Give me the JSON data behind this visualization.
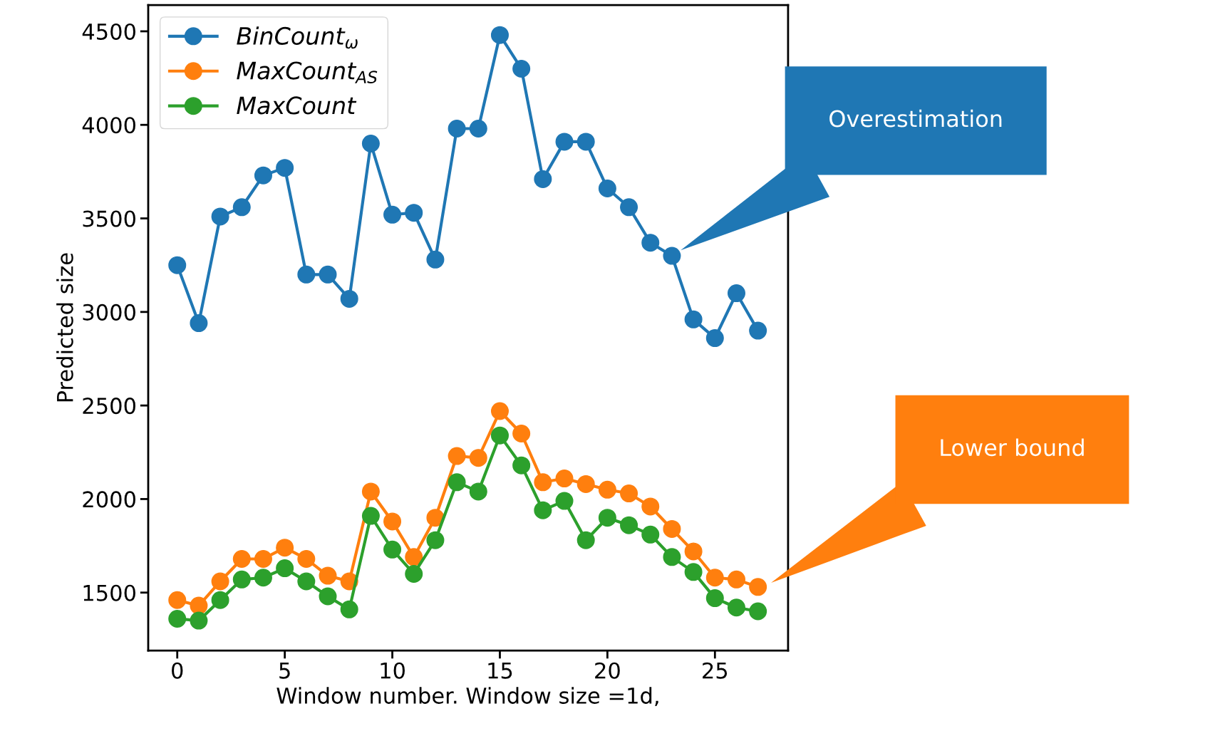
{
  "chart_data": {
    "type": "line",
    "xlabel": "Window number. Window size =1d,",
    "ylabel": "Predicted size",
    "x": [
      0,
      1,
      2,
      3,
      4,
      5,
      6,
      7,
      8,
      9,
      10,
      11,
      12,
      13,
      14,
      15,
      16,
      17,
      18,
      19,
      20,
      21,
      22,
      23,
      24,
      25,
      26,
      27
    ],
    "series": [
      {
        "name": "BinCount$_{ω}$",
        "color": "#1f77b4",
        "values": [
          3250,
          2940,
          3510,
          3560,
          3730,
          3770,
          3200,
          3200,
          3070,
          3900,
          3520,
          3530,
          3280,
          3980,
          3980,
          4480,
          4300,
          3710,
          3910,
          3910,
          3660,
          3560,
          3370,
          3300,
          2960,
          2860,
          3100,
          2900
        ]
      },
      {
        "name": "MaxCount$_{AS}$",
        "color": "#ff7f0e",
        "values": [
          1460,
          1430,
          1560,
          1680,
          1680,
          1740,
          1680,
          1590,
          1560,
          2040,
          1880,
          1690,
          1900,
          2230,
          2220,
          2470,
          2350,
          2090,
          2110,
          2080,
          2050,
          2030,
          1960,
          1840,
          1720,
          1580,
          1570,
          1530
        ]
      },
      {
        "name": "MaxCount",
        "color": "#2ca02c",
        "values": [
          1360,
          1350,
          1460,
          1570,
          1580,
          1630,
          1560,
          1480,
          1410,
          1910,
          1730,
          1600,
          1780,
          2090,
          2040,
          2340,
          2180,
          1940,
          1990,
          1780,
          1900,
          1860,
          1810,
          1690,
          1610,
          1470,
          1420,
          1400
        ]
      }
    ],
    "xlim": [
      -1.35,
      28.4
    ],
    "xticks": [
      0,
      5,
      10,
      15,
      20,
      25
    ],
    "ylim": [
      1190,
      4640
    ],
    "yticks": [
      1500,
      2000,
      2500,
      3000,
      3500,
      4000,
      4500
    ],
    "marker": "circle",
    "line_style": "solid",
    "legend": "top left",
    "grid": false,
    "annotations": [
      "Overestimation",
      "Lower bound"
    ]
  }
}
